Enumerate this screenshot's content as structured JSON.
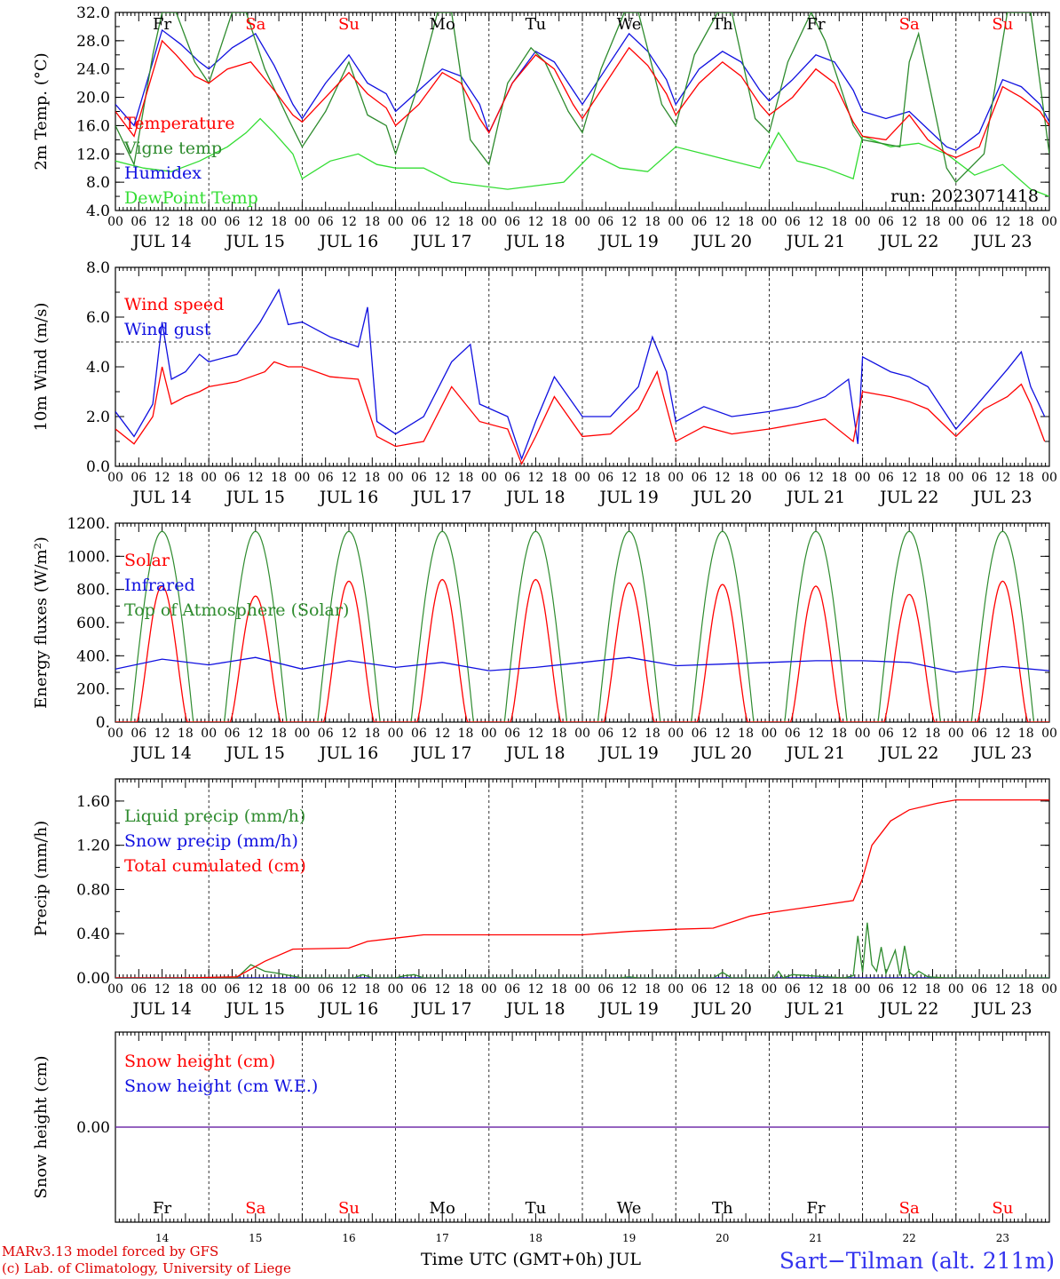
{
  "colors": {
    "red": "#ff0000",
    "blue": "#1010e0",
    "green": "#2e8b2e",
    "lime": "#33dd33",
    "purple": "#7a2ca0",
    "footer_red": "#dd0000",
    "station_blue": "#3333ee"
  },
  "days": {
    "weekday": [
      "Fr",
      "Sa",
      "Su",
      "Mo",
      "Tu",
      "We",
      "Th",
      "Fr",
      "Sa",
      "Su"
    ],
    "weekend": [
      false,
      true,
      true,
      false,
      false,
      false,
      false,
      false,
      true,
      true
    ],
    "date_labels": [
      "JUL 14",
      "JUL 15",
      "JUL 16",
      "JUL 17",
      "JUL 18",
      "JUL 19",
      "JUL 20",
      "JUL 21",
      "JUL 22",
      "JUL 23"
    ],
    "day_numbers": [
      "14",
      "15",
      "16",
      "17",
      "18",
      "19",
      "20",
      "21",
      "22",
      "23"
    ],
    "hour_ticks": [
      "00",
      "06",
      "12",
      "18"
    ],
    "final_tick": "00"
  },
  "footer": {
    "model_line": "MARv3.13 model forced by GFS",
    "credit_line": "(c) Lab. of Climatology, University of Liege",
    "xlabel": "Time UTC (GMT+0h) JUL",
    "station": "Sart−Tilman (alt. 211m)"
  },
  "chart_data": [
    {
      "type": "line",
      "id": "temp",
      "ylabel": "2m Temp. (°C)",
      "ylim": [
        4,
        32
      ],
      "yticks": [
        "4.0",
        "8.0",
        "12.0",
        "16.0",
        "20.0",
        "24.0",
        "28.0",
        "32.0"
      ],
      "annotation": "run: 2023071418",
      "x_unit": "days since JUL 14 00 UTC",
      "legend": [
        "Temperature",
        "Vigne temp",
        "Humidex",
        "DewPoint Temp"
      ],
      "series": [
        {
          "name": "Temperature",
          "color": "red",
          "x": [
            0,
            0.2,
            0.5,
            0.65,
            0.85,
            1.0,
            1.2,
            1.45,
            1.7,
            1.9,
            2.0,
            2.25,
            2.5,
            2.7,
            2.9,
            3.0,
            3.25,
            3.5,
            3.7,
            3.9,
            4.0,
            4.25,
            4.5,
            4.7,
            4.9,
            5.0,
            5.25,
            5.5,
            5.7,
            5.9,
            6.0,
            6.25,
            6.5,
            6.7,
            6.9,
            7.0,
            7.25,
            7.5,
            7.7,
            7.9,
            8.0,
            8.25,
            8.5,
            8.7,
            8.9,
            9.0,
            9.25,
            9.5,
            9.7,
            9.9,
            10.0
          ],
          "y": [
            18,
            14.5,
            28,
            26,
            23,
            22,
            24,
            25,
            21,
            17.5,
            16.5,
            20,
            23.5,
            20.5,
            18.5,
            16,
            19,
            23.5,
            22,
            17,
            15,
            22,
            26,
            24,
            19,
            17,
            22,
            27,
            24.5,
            20.5,
            17.5,
            22,
            25,
            23,
            19,
            17.5,
            20,
            24,
            22,
            16.5,
            14.5,
            14,
            17.5,
            14,
            12,
            11.5,
            13,
            21.5,
            20,
            18,
            16
          ]
        },
        {
          "name": "Vigne temp",
          "color": "green",
          "x": [
            0,
            0.2,
            0.4,
            0.5,
            0.65,
            0.85,
            1.0,
            1.25,
            1.4,
            1.6,
            1.85,
            2.0,
            2.25,
            2.5,
            2.7,
            2.9,
            3.0,
            3.25,
            3.45,
            3.6,
            3.8,
            4.0,
            4.2,
            4.45,
            4.6,
            4.85,
            5.0,
            5.2,
            5.45,
            5.6,
            5.85,
            6.0,
            6.2,
            6.45,
            6.6,
            6.85,
            7.0,
            7.2,
            7.45,
            7.6,
            7.9,
            8.0,
            8.4,
            8.5,
            8.6,
            8.9,
            9.0,
            9.3,
            9.55,
            9.8,
            10.0
          ],
          "y": [
            16,
            10.5,
            26,
            32,
            32,
            25,
            22,
            32,
            32,
            24,
            17,
            13,
            18,
            25,
            17.5,
            16,
            12,
            22,
            32,
            32,
            14,
            10.5,
            22,
            27,
            25,
            18,
            15,
            24,
            32,
            32,
            19,
            16,
            26,
            32,
            32,
            17,
            15,
            25,
            32,
            28,
            16,
            14,
            13,
            25,
            29,
            10,
            8,
            12,
            32,
            32,
            12
          ]
        },
        {
          "name": "Humidex",
          "color": "blue",
          "x": [
            0,
            0.2,
            0.5,
            0.7,
            0.9,
            1.0,
            1.25,
            1.5,
            1.7,
            1.9,
            2.0,
            2.25,
            2.5,
            2.7,
            2.9,
            3.0,
            3.25,
            3.5,
            3.7,
            3.9,
            4.0,
            4.25,
            4.5,
            4.7,
            4.9,
            5.0,
            5.25,
            5.5,
            5.7,
            5.9,
            6.0,
            6.25,
            6.5,
            6.7,
            6.9,
            7.0,
            7.25,
            7.5,
            7.7,
            7.9,
            8.0,
            8.25,
            8.5,
            8.7,
            8.9,
            9.0,
            9.25,
            9.5,
            9.7,
            9.9,
            10.0
          ],
          "y": [
            19,
            16,
            29.5,
            27.5,
            25,
            24,
            27,
            29,
            24.5,
            19,
            17,
            22,
            26,
            22,
            20.5,
            18,
            21,
            24,
            23,
            19,
            15,
            22,
            26.5,
            25,
            21,
            19,
            24,
            29,
            26.5,
            22.5,
            19,
            24,
            26.5,
            25,
            21,
            19.5,
            22.5,
            26,
            25,
            21,
            18,
            17,
            18,
            15.5,
            13,
            12.5,
            15,
            22.5,
            21.5,
            19,
            16.5
          ]
        },
        {
          "name": "DewPoint Temp",
          "color": "lime",
          "x": [
            0,
            0.3,
            0.6,
            0.9,
            1.2,
            1.4,
            1.55,
            1.7,
            1.9,
            2.0,
            2.3,
            2.6,
            2.8,
            3.0,
            3.3,
            3.6,
            3.9,
            4.2,
            4.5,
            4.8,
            5.1,
            5.4,
            5.7,
            6.0,
            6.3,
            6.6,
            6.9,
            7.1,
            7.3,
            7.6,
            7.9,
            8.0,
            8.3,
            8.6,
            8.9,
            9.2,
            9.5,
            9.8,
            10.0
          ],
          "y": [
            11,
            10,
            9.5,
            11,
            13,
            15,
            17,
            15,
            12,
            8.5,
            11,
            12,
            10.5,
            10,
            10,
            8,
            7.5,
            7,
            7.5,
            8,
            12,
            10,
            9.5,
            13,
            12,
            11,
            10,
            15,
            11,
            10,
            8.5,
            14.5,
            13,
            13.5,
            12,
            9,
            10.5,
            7,
            6
          ]
        }
      ]
    },
    {
      "type": "line",
      "id": "wind",
      "ylabel": "10m Wind (m/s)",
      "ylim": [
        0,
        8
      ],
      "yticks": [
        "0.0",
        "2.0",
        "4.0",
        "6.0",
        "8.0"
      ],
      "reference_line": 5,
      "legend": [
        "Wind speed",
        "Wind gust"
      ],
      "series": [
        {
          "name": "Wind speed",
          "color": "red",
          "x": [
            0,
            0.2,
            0.4,
            0.5,
            0.6,
            0.75,
            0.9,
            1.0,
            1.3,
            1.6,
            1.7,
            1.85,
            2.0,
            2.3,
            2.6,
            2.8,
            3.0,
            3.3,
            3.6,
            3.9,
            4.2,
            4.35,
            4.5,
            4.7,
            5.0,
            5.3,
            5.6,
            5.8,
            6.0,
            6.3,
            6.6,
            7.0,
            7.3,
            7.6,
            7.9,
            8.0,
            8.3,
            8.5,
            8.7,
            9.0,
            9.3,
            9.55,
            9.7,
            9.8,
            9.95
          ],
          "y": [
            1.5,
            0.9,
            2.0,
            4.0,
            2.5,
            2.8,
            3.0,
            3.2,
            3.4,
            3.8,
            4.2,
            4.0,
            4.0,
            3.6,
            3.5,
            1.2,
            0.8,
            1.0,
            3.2,
            1.8,
            1.5,
            0.1,
            1.2,
            2.8,
            1.2,
            1.3,
            2.3,
            3.8,
            1.0,
            1.6,
            1.3,
            1.5,
            1.7,
            1.9,
            1.0,
            3.0,
            2.8,
            2.6,
            2.3,
            1.2,
            2.3,
            2.8,
            3.3,
            2.5,
            1.0
          ]
        },
        {
          "name": "Wind gust",
          "color": "blue",
          "x": [
            0,
            0.2,
            0.4,
            0.5,
            0.6,
            0.75,
            0.9,
            1.0,
            1.3,
            1.55,
            1.75,
            1.85,
            2.0,
            2.3,
            2.6,
            2.7,
            2.8,
            3.0,
            3.3,
            3.6,
            3.8,
            3.9,
            4.2,
            4.35,
            4.5,
            4.7,
            5.0,
            5.3,
            5.6,
            5.75,
            5.9,
            6.0,
            6.3,
            6.6,
            7.0,
            7.3,
            7.6,
            7.85,
            7.95,
            8.0,
            8.3,
            8.5,
            8.7,
            9.0,
            9.3,
            9.55,
            9.7,
            9.8,
            9.95
          ],
          "y": [
            2.2,
            1.2,
            2.5,
            5.8,
            3.5,
            3.8,
            4.5,
            4.2,
            4.5,
            5.8,
            7.1,
            5.7,
            5.8,
            5.2,
            4.8,
            6.4,
            1.8,
            1.3,
            2.0,
            4.2,
            4.9,
            2.5,
            2.0,
            0.3,
            1.8,
            3.6,
            2.0,
            2.0,
            3.2,
            5.2,
            3.8,
            1.8,
            2.4,
            2.0,
            2.2,
            2.4,
            2.8,
            3.5,
            0.9,
            4.4,
            3.8,
            3.6,
            3.2,
            1.5,
            2.8,
            3.9,
            4.6,
            3.2,
            2.0
          ]
        }
      ]
    },
    {
      "type": "line",
      "id": "energy",
      "ylabel": "Energy fluxes (W/m²)",
      "ylim": [
        0,
        1200
      ],
      "yticks": [
        "0.",
        "200.",
        "400.",
        "600.",
        "800.",
        "1000.",
        "1200."
      ],
      "legend": [
        "Solar",
        "Infrared",
        "Top of Atmosphere (Solar)"
      ],
      "toa_peak": 1150,
      "solar_peaks": [
        820,
        760,
        850,
        860,
        860,
        840,
        830,
        820,
        770,
        850
      ],
      "infrared": {
        "x": [
          0,
          0.5,
          1.0,
          1.5,
          2.0,
          2.5,
          3.0,
          3.5,
          4.0,
          4.5,
          5.0,
          5.5,
          6.0,
          6.5,
          7.0,
          7.5,
          8.0,
          8.5,
          9.0,
          9.5,
          10.0
        ],
        "y": [
          320,
          380,
          345,
          390,
          320,
          370,
          330,
          360,
          310,
          330,
          360,
          390,
          340,
          350,
          360,
          370,
          370,
          360,
          300,
          335,
          310
        ]
      },
      "series": [
        {
          "name": "Solar",
          "color": "red"
        },
        {
          "name": "Infrared",
          "color": "blue"
        },
        {
          "name": "Top of Atmosphere (Solar)",
          "color": "green"
        }
      ]
    },
    {
      "type": "line",
      "id": "precip",
      "ylabel": "Precip (mm/h)",
      "ylim": [
        0,
        1.8
      ],
      "yticks": [
        "0.00",
        "0.40",
        "0.80",
        "1.20",
        "1.60"
      ],
      "legend": [
        "Liquid precip (mm/h)",
        "Snow precip (mm/h)",
        "Total cumulated (cm)"
      ],
      "series": [
        {
          "name": "Total cumulated (cm)",
          "color": "red",
          "x": [
            0,
            0.7,
            1.3,
            1.6,
            1.9,
            2.5,
            2.7,
            3.0,
            3.3,
            4.0,
            5.0,
            5.5,
            6.0,
            6.4,
            6.8,
            7.0,
            7.5,
            7.9,
            8.0,
            8.1,
            8.3,
            8.5,
            8.8,
            9.0,
            10.0
          ],
          "y": [
            0,
            0,
            0.01,
            0.15,
            0.26,
            0.27,
            0.33,
            0.36,
            0.39,
            0.39,
            0.39,
            0.42,
            0.44,
            0.45,
            0.56,
            0.59,
            0.65,
            0.7,
            0.9,
            1.2,
            1.42,
            1.52,
            1.58,
            1.61,
            1.61
          ]
        },
        {
          "name": "Liquid precip (mm/h)",
          "color": "green",
          "x": [
            0,
            1.3,
            1.45,
            1.6,
            1.75,
            2.0,
            2.55,
            2.65,
            2.75,
            3.0,
            3.1,
            3.2,
            3.3,
            4.0,
            5.4,
            5.5,
            5.6,
            6.4,
            6.5,
            6.6,
            7.05,
            7.1,
            7.15,
            7.25,
            7.8,
            7.9,
            7.95,
            8.0,
            8.05,
            8.1,
            8.15,
            8.2,
            8.25,
            8.35,
            8.4,
            8.45,
            8.5,
            8.55,
            8.6,
            8.7,
            8.9,
            9.0,
            10.0
          ],
          "y": [
            0,
            0,
            0.12,
            0.06,
            0.04,
            0,
            0,
            0.03,
            0,
            0,
            0.02,
            0.03,
            0,
            0,
            0,
            0.01,
            0,
            0,
            0.05,
            0,
            0,
            0.06,
            0,
            0.03,
            0,
            0.02,
            0.38,
            0.05,
            0.5,
            0.12,
            0.06,
            0.28,
            0.04,
            0.25,
            0.02,
            0.29,
            0.05,
            0.02,
            0.06,
            0.01,
            0,
            0,
            0
          ]
        },
        {
          "name": "Snow precip (mm/h)",
          "color": "blue",
          "x": [
            0,
            10
          ],
          "y": [
            0,
            0
          ]
        }
      ]
    },
    {
      "type": "line",
      "id": "snow",
      "ylabel": "Snow height (cm)",
      "ylim": [
        -1,
        1
      ],
      "yticks": [
        "0.00"
      ],
      "legend": [
        "Snow height (cm)",
        "Snow height (cm W.E.)"
      ],
      "series": [
        {
          "name": "Snow height (cm)",
          "color": "red",
          "x": [
            0,
            10
          ],
          "y": [
            0,
            0
          ]
        },
        {
          "name": "Snow height (cm W.E.)",
          "color": "blue",
          "x": [
            0,
            10
          ],
          "y": [
            0,
            0
          ]
        }
      ]
    }
  ]
}
